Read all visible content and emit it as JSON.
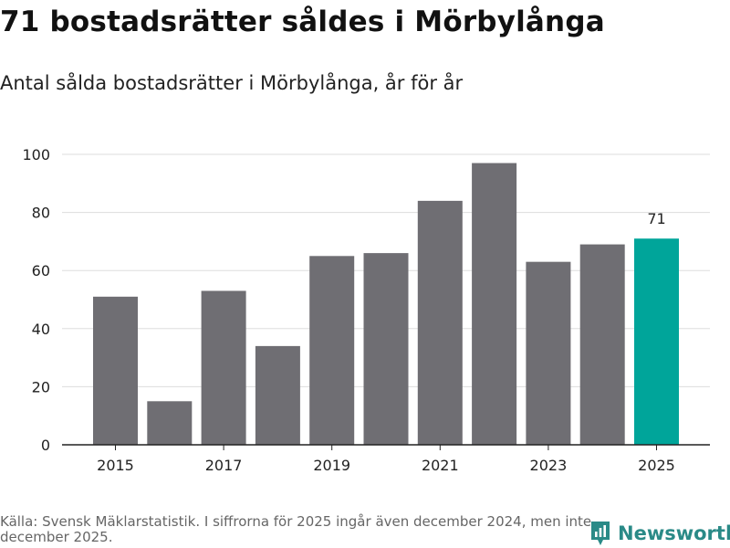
{
  "header": {
    "title": "71 bostadsrätter såldes i Mörbylånga",
    "subtitle": "Antal sålda bostadsrätter i Mörbylånga, år för år"
  },
  "footer": {
    "source": "Källa: Svensk Mäklarstatistik. I siffrorna för 2025 ingår även december 2024, men inte december 2025.",
    "brand": "Newsworthy"
  },
  "colors": {
    "bar": "#6f6e73",
    "highlight": "#00a59a",
    "grid": "#dddddd",
    "axis": "#222222",
    "brand": "#2a8a87"
  },
  "chart_data": {
    "type": "bar",
    "title": "Antal sålda bostadsrätter i Mörbylånga, år för år",
    "xlabel": "",
    "ylabel": "",
    "categories": [
      "2015",
      "2016",
      "2017",
      "2018",
      "2019",
      "2020",
      "2021",
      "2022",
      "2023",
      "2024",
      "2025"
    ],
    "values": [
      51,
      15,
      53,
      34,
      65,
      66,
      84,
      97,
      63,
      69,
      71
    ],
    "x_tick_labels": [
      "2015",
      "2017",
      "2019",
      "2021",
      "2023",
      "2025"
    ],
    "y_ticks": [
      0,
      20,
      40,
      60,
      80,
      100
    ],
    "ylim": [
      0,
      100
    ],
    "grid": true,
    "highlight_category": "2025",
    "data_labels": [
      {
        "category": "2025",
        "text": "71"
      }
    ]
  }
}
